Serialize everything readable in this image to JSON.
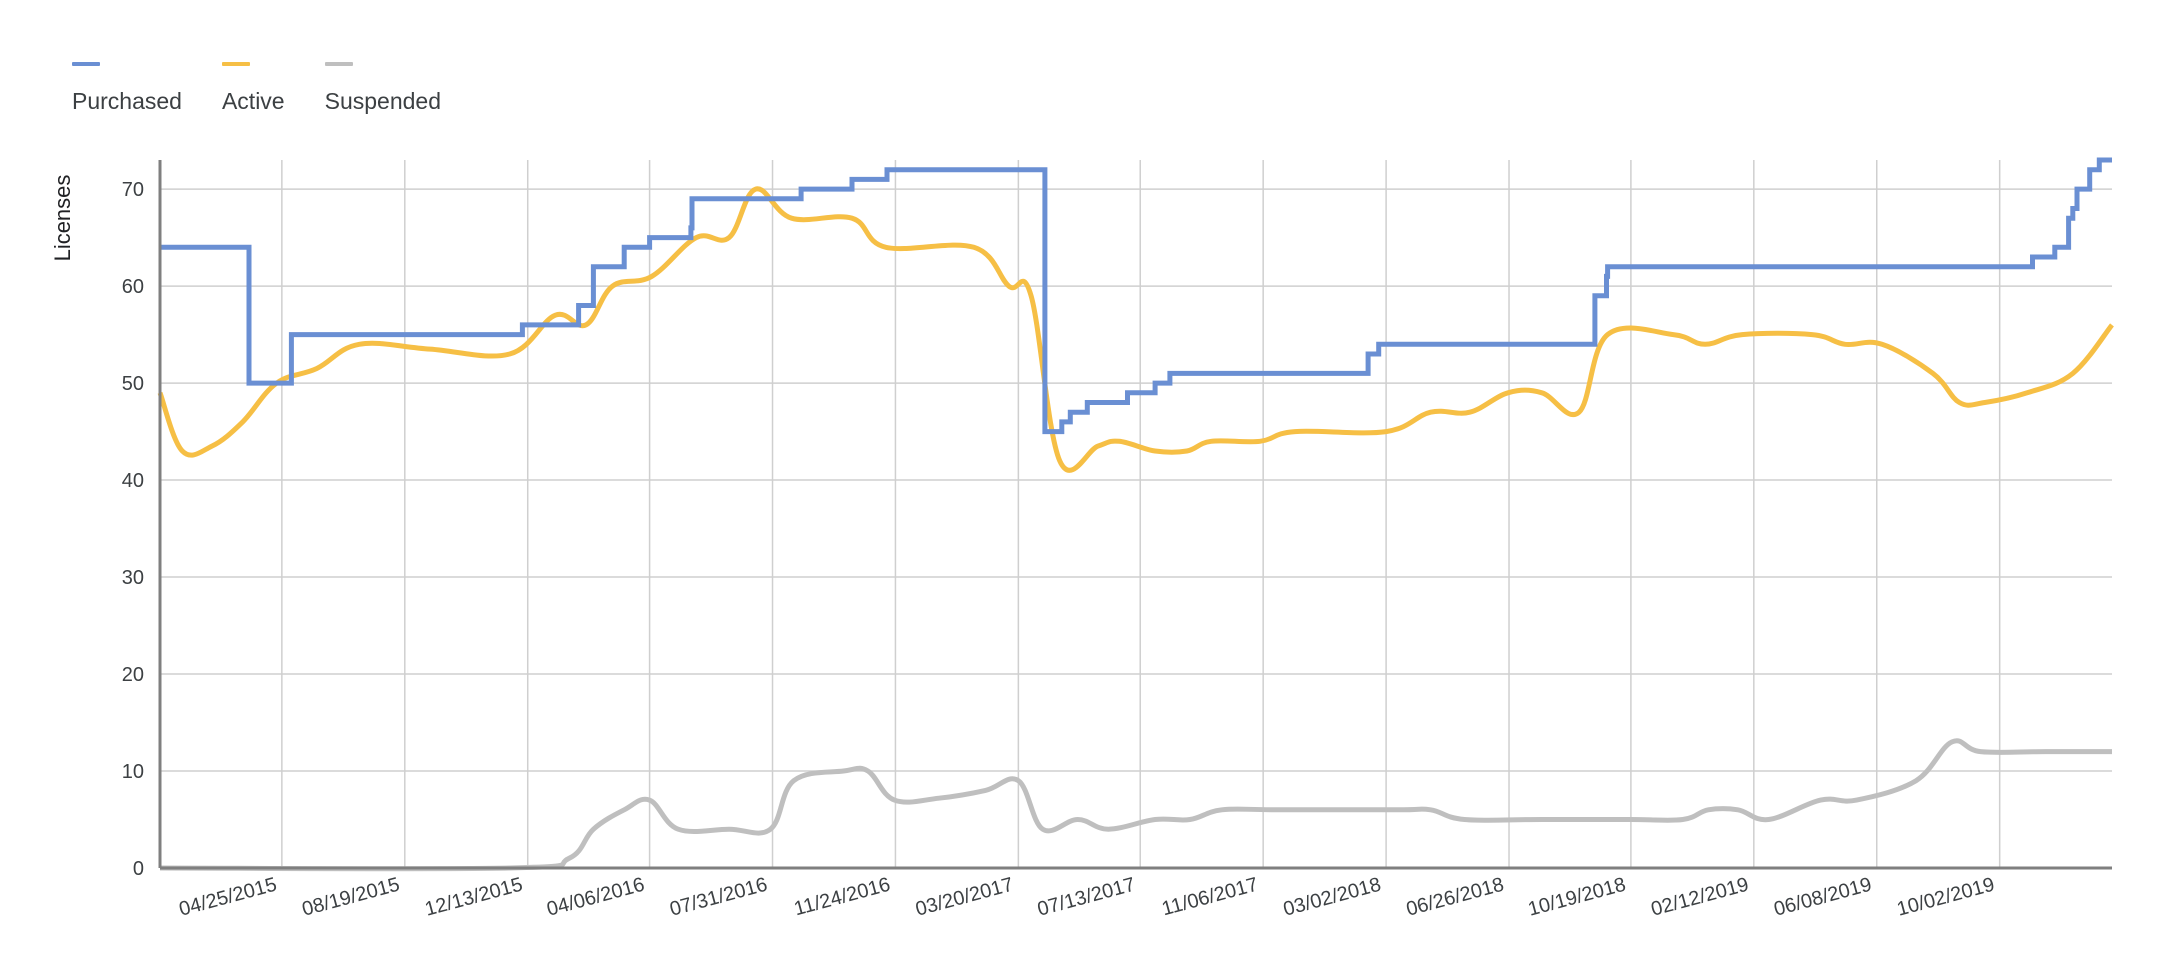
{
  "chart_data": {
    "type": "line",
    "title": "",
    "xlabel": "",
    "ylabel": "Licenses",
    "ylim": [
      0,
      73
    ],
    "grid": true,
    "legend_position": "top-left",
    "x_ticks": [
      "04/25/2015",
      "08/19/2015",
      "12/13/2015",
      "04/06/2016",
      "07/31/2016",
      "11/24/2016",
      "03/20/2017",
      "07/13/2017",
      "11/06/2017",
      "03/02/2018",
      "06/26/2018",
      "10/19/2018",
      "02/12/2019",
      "06/08/2019",
      "10/02/2019"
    ],
    "y_ticks": [
      0,
      10,
      20,
      30,
      40,
      50,
      60,
      70
    ],
    "x_range": [
      "12/31/2014",
      "01/16/2020"
    ],
    "series": [
      {
        "name": "Purchased",
        "color": "#6a8fd3",
        "step": true,
        "points": [
          [
            "12/31/2014",
            64
          ],
          [
            "03/25/2015",
            50
          ],
          [
            "05/04/2015",
            55
          ],
          [
            "12/08/2015",
            56
          ],
          [
            "01/30/2016",
            58
          ],
          [
            "02/13/2016",
            62
          ],
          [
            "03/13/2016",
            64
          ],
          [
            "04/06/2016",
            65
          ],
          [
            "05/15/2016",
            66
          ],
          [
            "05/16/2016",
            69
          ],
          [
            "08/27/2016",
            70
          ],
          [
            "10/14/2016",
            71
          ],
          [
            "11/16/2016",
            72
          ],
          [
            "04/14/2017",
            45
          ],
          [
            "04/30/2017",
            46
          ],
          [
            "05/08/2017",
            47
          ],
          [
            "05/24/2017",
            48
          ],
          [
            "07/01/2017",
            49
          ],
          [
            "07/27/2017",
            50
          ],
          [
            "08/10/2017",
            51
          ],
          [
            "02/13/2018",
            53
          ],
          [
            "02/23/2018",
            54
          ],
          [
            "09/15/2018",
            59
          ],
          [
            "09/26/2018",
            61
          ],
          [
            "09/27/2018",
            62
          ],
          [
            "11/02/2019",
            63
          ],
          [
            "11/23/2019",
            64
          ],
          [
            "12/06/2019",
            67
          ],
          [
            "12/10/2019",
            68
          ],
          [
            "12/14/2019",
            70
          ],
          [
            "12/26/2019",
            72
          ],
          [
            "01/04/2020",
            73
          ],
          [
            "01/16/2020",
            73
          ]
        ]
      },
      {
        "name": "Active",
        "color": "#f6bf45",
        "step": false,
        "points": [
          [
            "12/31/2014",
            49
          ],
          [
            "01/21/2015",
            43
          ],
          [
            "02/18/2015",
            43.5
          ],
          [
            "03/19/2015",
            46
          ],
          [
            "04/20/2015",
            50
          ],
          [
            "05/28/2015",
            51.5
          ],
          [
            "07/07/2015",
            54
          ],
          [
            "09/12/2015",
            53.5
          ],
          [
            "11/26/2015",
            53
          ],
          [
            "01/08/2016",
            57
          ],
          [
            "02/06/2016",
            56
          ],
          [
            "03/02/2016",
            60
          ],
          [
            "04/08/2016",
            61
          ],
          [
            "05/20/2016",
            65
          ],
          [
            "06/20/2016",
            65
          ],
          [
            "07/15/2016",
            70
          ],
          [
            "08/18/2016",
            67
          ],
          [
            "10/14/2016",
            67
          ],
          [
            "11/15/2016",
            64
          ],
          [
            "02/06/2017",
            64
          ],
          [
            "03/11/2017",
            60
          ],
          [
            "04/01/2017",
            59
          ],
          [
            "04/28/2017",
            42
          ],
          [
            "06/03/2017",
            43.5
          ],
          [
            "06/23/2017",
            44
          ],
          [
            "07/27/2017",
            43
          ],
          [
            "08/26/2017",
            43
          ],
          [
            "09/18/2017",
            44
          ],
          [
            "11/03/2017",
            44
          ],
          [
            "12/06/2017",
            45
          ],
          [
            "03/02/2018",
            45
          ],
          [
            "04/13/2018",
            47
          ],
          [
            "05/20/2018",
            47
          ],
          [
            "06/25/2018",
            49
          ],
          [
            "07/27/2018",
            49
          ],
          [
            "08/31/2018",
            47
          ],
          [
            "09/27/2018",
            55
          ],
          [
            "11/28/2018",
            55
          ],
          [
            "12/28/2018",
            54
          ],
          [
            "02/01/2019",
            55
          ],
          [
            "04/08/2019",
            55
          ],
          [
            "05/09/2019",
            54
          ],
          [
            "06/13/2019",
            54
          ],
          [
            "07/31/2019",
            51
          ],
          [
            "08/25/2019",
            48
          ],
          [
            "09/18/2019",
            48
          ],
          [
            "10/28/2019",
            49
          ],
          [
            "12/10/2019",
            51
          ],
          [
            "01/16/2020",
            56
          ]
        ]
      },
      {
        "name": "Suspended",
        "color": "#bfbfbf",
        "step": false,
        "points": [
          [
            "12/31/2014",
            0
          ],
          [
            "11/26/2015",
            0
          ],
          [
            "01/21/2016",
            1
          ],
          [
            "02/13/2016",
            4
          ],
          [
            "03/13/2016",
            6
          ],
          [
            "04/06/2016",
            7
          ],
          [
            "05/03/2016",
            4
          ],
          [
            "06/20/2016",
            4
          ],
          [
            "07/29/2016",
            4
          ],
          [
            "08/20/2016",
            9
          ],
          [
            "10/06/2016",
            10
          ],
          [
            "10/29/2016",
            10
          ],
          [
            "11/23/2016",
            7
          ],
          [
            "01/04/2017",
            7.2
          ],
          [
            "02/17/2017",
            8
          ],
          [
            "03/20/2017",
            9
          ],
          [
            "04/12/2017",
            4
          ],
          [
            "05/15/2017",
            5
          ],
          [
            "06/13/2017",
            4
          ],
          [
            "07/27/2017",
            5
          ],
          [
            "08/29/2017",
            5
          ],
          [
            "09/28/2017",
            6
          ],
          [
            "11/20/2017",
            6
          ],
          [
            "03/13/2018",
            6
          ],
          [
            "04/13/2018",
            6
          ],
          [
            "05/15/2018",
            5
          ],
          [
            "07/27/2018",
            5
          ],
          [
            "10/19/2018",
            5
          ],
          [
            "12/07/2018",
            5
          ],
          [
            "12/31/2018",
            6
          ],
          [
            "01/28/2019",
            6
          ],
          [
            "02/26/2019",
            5
          ],
          [
            "04/16/2019",
            7
          ],
          [
            "05/20/2019",
            7
          ],
          [
            "07/15/2019",
            9
          ],
          [
            "08/18/2019",
            13
          ],
          [
            "09/14/2019",
            12
          ],
          [
            "11/14/2019",
            12
          ],
          [
            "01/16/2020",
            12
          ]
        ]
      }
    ]
  }
}
